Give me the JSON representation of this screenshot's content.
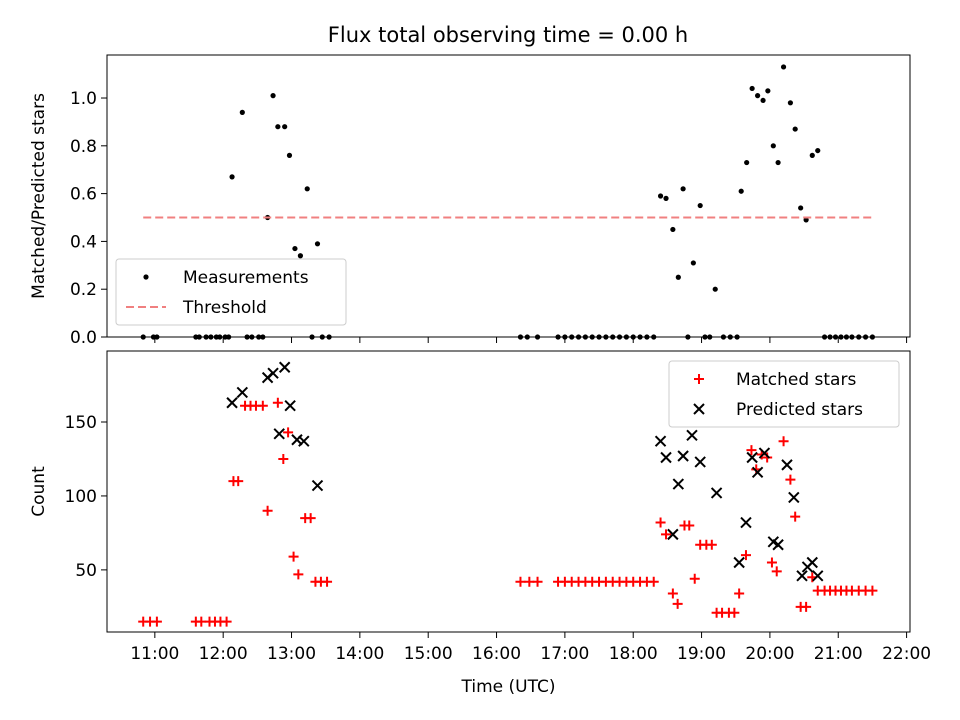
{
  "title": "Flux total observing time = 0.00 h",
  "chart_data": [
    {
      "type": "scatter",
      "ylabel": "Matched/Predicted stars",
      "xlabel": "",
      "x_unit": "hours UTC",
      "xlim": [
        10.3,
        22.05
      ],
      "ylim": [
        0,
        1.18
      ],
      "yticks": [
        0.0,
        0.2,
        0.4,
        0.6,
        0.8,
        1.0
      ],
      "ytick_labels": [
        "0.0",
        "0.2",
        "0.4",
        "0.6",
        "0.8",
        "1.0"
      ],
      "grid": false,
      "legend": "lower-left",
      "series": [
        {
          "name": "Measurements",
          "color": "#000000",
          "marker": "dot",
          "points": [
            [
              10.83,
              0
            ],
            [
              10.98,
              0
            ],
            [
              11.03,
              0
            ],
            [
              11.6,
              0
            ],
            [
              11.65,
              0
            ],
            [
              11.75,
              0
            ],
            [
              11.82,
              0
            ],
            [
              11.9,
              0
            ],
            [
              11.95,
              0
            ],
            [
              12.03,
              0
            ],
            [
              12.08,
              0
            ],
            [
              12.13,
              0.67
            ],
            [
              12.28,
              0.94
            ],
            [
              12.35,
              0
            ],
            [
              12.42,
              0
            ],
            [
              12.52,
              0
            ],
            [
              12.58,
              0
            ],
            [
              12.65,
              0.5
            ],
            [
              12.73,
              1.01
            ],
            [
              12.8,
              0.88
            ],
            [
              12.9,
              0.88
            ],
            [
              12.97,
              0.76
            ],
            [
              13.05,
              0.37
            ],
            [
              13.13,
              0.34
            ],
            [
              13.23,
              0.62
            ],
            [
              13.3,
              0
            ],
            [
              13.38,
              0.39
            ],
            [
              13.45,
              0
            ],
            [
              13.55,
              0
            ],
            [
              16.35,
              0
            ],
            [
              16.45,
              0
            ],
            [
              16.6,
              0
            ],
            [
              16.9,
              0
            ],
            [
              17.0,
              0
            ],
            [
              17.1,
              0
            ],
            [
              17.2,
              0
            ],
            [
              17.3,
              0
            ],
            [
              17.4,
              0
            ],
            [
              17.5,
              0
            ],
            [
              17.6,
              0
            ],
            [
              17.7,
              0
            ],
            [
              17.8,
              0
            ],
            [
              17.9,
              0
            ],
            [
              18.0,
              0
            ],
            [
              18.1,
              0
            ],
            [
              18.2,
              0
            ],
            [
              18.3,
              0
            ],
            [
              18.4,
              0.59
            ],
            [
              18.48,
              0.58
            ],
            [
              18.58,
              0.45
            ],
            [
              18.66,
              0.25
            ],
            [
              18.73,
              0.62
            ],
            [
              18.8,
              0
            ],
            [
              18.88,
              0.31
            ],
            [
              18.98,
              0.55
            ],
            [
              19.05,
              0
            ],
            [
              19.12,
              0
            ],
            [
              19.2,
              0.2
            ],
            [
              19.32,
              0
            ],
            [
              19.42,
              0
            ],
            [
              19.52,
              0
            ],
            [
              19.58,
              0.61
            ],
            [
              19.66,
              0.73
            ],
            [
              19.74,
              1.04
            ],
            [
              19.82,
              1.01
            ],
            [
              19.9,
              0.99
            ],
            [
              19.97,
              1.03
            ],
            [
              20.05,
              0.8
            ],
            [
              20.12,
              0.73
            ],
            [
              20.2,
              1.13
            ],
            [
              20.3,
              0.98
            ],
            [
              20.37,
              0.87
            ],
            [
              20.45,
              0.54
            ],
            [
              20.53,
              0.49
            ],
            [
              20.62,
              0.76
            ],
            [
              20.7,
              0.78
            ],
            [
              20.8,
              0
            ],
            [
              20.88,
              0
            ],
            [
              20.96,
              0
            ],
            [
              21.04,
              0
            ],
            [
              21.12,
              0
            ],
            [
              21.2,
              0
            ],
            [
              21.3,
              0
            ],
            [
              21.4,
              0
            ],
            [
              21.5,
              0
            ]
          ]
        },
        {
          "name": "Threshold",
          "color": "#f08080",
          "line_style": "dashed",
          "points": [
            [
              10.83,
              0.5
            ],
            [
              21.5,
              0.5
            ]
          ]
        }
      ]
    },
    {
      "type": "scatter",
      "ylabel": "Count",
      "xlabel": "Time (UTC)",
      "x_unit": "hours UTC",
      "xlim": [
        10.3,
        22.05
      ],
      "ylim": [
        8,
        198
      ],
      "yticks": [
        50,
        100,
        150
      ],
      "ytick_labels": [
        "50",
        "100",
        "150"
      ],
      "xticks": [
        11,
        12,
        13,
        14,
        15,
        16,
        17,
        18,
        19,
        20,
        21,
        22
      ],
      "xtick_labels": [
        "11:00",
        "12:00",
        "13:00",
        "14:00",
        "15:00",
        "16:00",
        "17:00",
        "18:00",
        "19:00",
        "20:00",
        "21:00",
        "22:00"
      ],
      "grid": false,
      "legend": "upper-right",
      "series": [
        {
          "name": "Matched stars",
          "color": "#ff0000",
          "marker": "plus",
          "points": [
            [
              10.83,
              15
            ],
            [
              10.93,
              15
            ],
            [
              11.03,
              15
            ],
            [
              11.6,
              15
            ],
            [
              11.68,
              15
            ],
            [
              11.8,
              15
            ],
            [
              11.88,
              15
            ],
            [
              11.96,
              15
            ],
            [
              12.05,
              15
            ],
            [
              12.15,
              110
            ],
            [
              12.22,
              110
            ],
            [
              12.32,
              161
            ],
            [
              12.4,
              161
            ],
            [
              12.48,
              161
            ],
            [
              12.58,
              161
            ],
            [
              12.65,
              90
            ],
            [
              12.8,
              163
            ],
            [
              12.88,
              125
            ],
            [
              12.95,
              143
            ],
            [
              13.03,
              59
            ],
            [
              13.1,
              47
            ],
            [
              13.2,
              85
            ],
            [
              13.28,
              85
            ],
            [
              13.35,
              42
            ],
            [
              13.43,
              42
            ],
            [
              13.52,
              42
            ],
            [
              16.35,
              42
            ],
            [
              16.48,
              42
            ],
            [
              16.6,
              42
            ],
            [
              16.9,
              42
            ],
            [
              17.0,
              42
            ],
            [
              17.1,
              42
            ],
            [
              17.2,
              42
            ],
            [
              17.3,
              42
            ],
            [
              17.4,
              42
            ],
            [
              17.5,
              42
            ],
            [
              17.6,
              42
            ],
            [
              17.7,
              42
            ],
            [
              17.8,
              42
            ],
            [
              17.9,
              42
            ],
            [
              18.0,
              42
            ],
            [
              18.1,
              42
            ],
            [
              18.2,
              42
            ],
            [
              18.3,
              42
            ],
            [
              18.4,
              82
            ],
            [
              18.48,
              74
            ],
            [
              18.58,
              34
            ],
            [
              18.65,
              27
            ],
            [
              18.75,
              80
            ],
            [
              18.82,
              80
            ],
            [
              18.9,
              44
            ],
            [
              18.98,
              67
            ],
            [
              19.07,
              67
            ],
            [
              19.15,
              67
            ],
            [
              19.22,
              21
            ],
            [
              19.3,
              21
            ],
            [
              19.4,
              21
            ],
            [
              19.48,
              21
            ],
            [
              19.55,
              34
            ],
            [
              19.65,
              60
            ],
            [
              19.73,
              131
            ],
            [
              19.8,
              118
            ],
            [
              19.88,
              128
            ],
            [
              19.96,
              126
            ],
            [
              20.03,
              55
            ],
            [
              20.1,
              49
            ],
            [
              20.2,
              137
            ],
            [
              20.3,
              111
            ],
            [
              20.37,
              86
            ],
            [
              20.45,
              25
            ],
            [
              20.53,
              25
            ],
            [
              20.62,
              45
            ],
            [
              20.7,
              36
            ],
            [
              20.8,
              36
            ],
            [
              20.88,
              36
            ],
            [
              20.96,
              36
            ],
            [
              21.04,
              36
            ],
            [
              21.12,
              36
            ],
            [
              21.2,
              36
            ],
            [
              21.3,
              36
            ],
            [
              21.4,
              36
            ],
            [
              21.5,
              36
            ]
          ]
        },
        {
          "name": "Predicted stars",
          "color": "#000000",
          "marker": "x",
          "points": [
            [
              12.13,
              163
            ],
            [
              12.28,
              170
            ],
            [
              12.65,
              180
            ],
            [
              12.73,
              183
            ],
            [
              12.82,
              142
            ],
            [
              12.9,
              187
            ],
            [
              12.98,
              161
            ],
            [
              13.08,
              138
            ],
            [
              13.18,
              137
            ],
            [
              13.38,
              107
            ],
            [
              18.4,
              137
            ],
            [
              18.48,
              126
            ],
            [
              18.58,
              74
            ],
            [
              18.66,
              108
            ],
            [
              18.73,
              127
            ],
            [
              18.86,
              141
            ],
            [
              18.98,
              123
            ],
            [
              19.22,
              102
            ],
            [
              19.55,
              55
            ],
            [
              19.65,
              82
            ],
            [
              19.74,
              126
            ],
            [
              19.82,
              116
            ],
            [
              19.92,
              129
            ],
            [
              20.05,
              69
            ],
            [
              20.12,
              67
            ],
            [
              20.25,
              121
            ],
            [
              20.35,
              99
            ],
            [
              20.47,
              46
            ],
            [
              20.55,
              52
            ],
            [
              20.62,
              55
            ],
            [
              20.7,
              46
            ]
          ]
        }
      ]
    }
  ]
}
